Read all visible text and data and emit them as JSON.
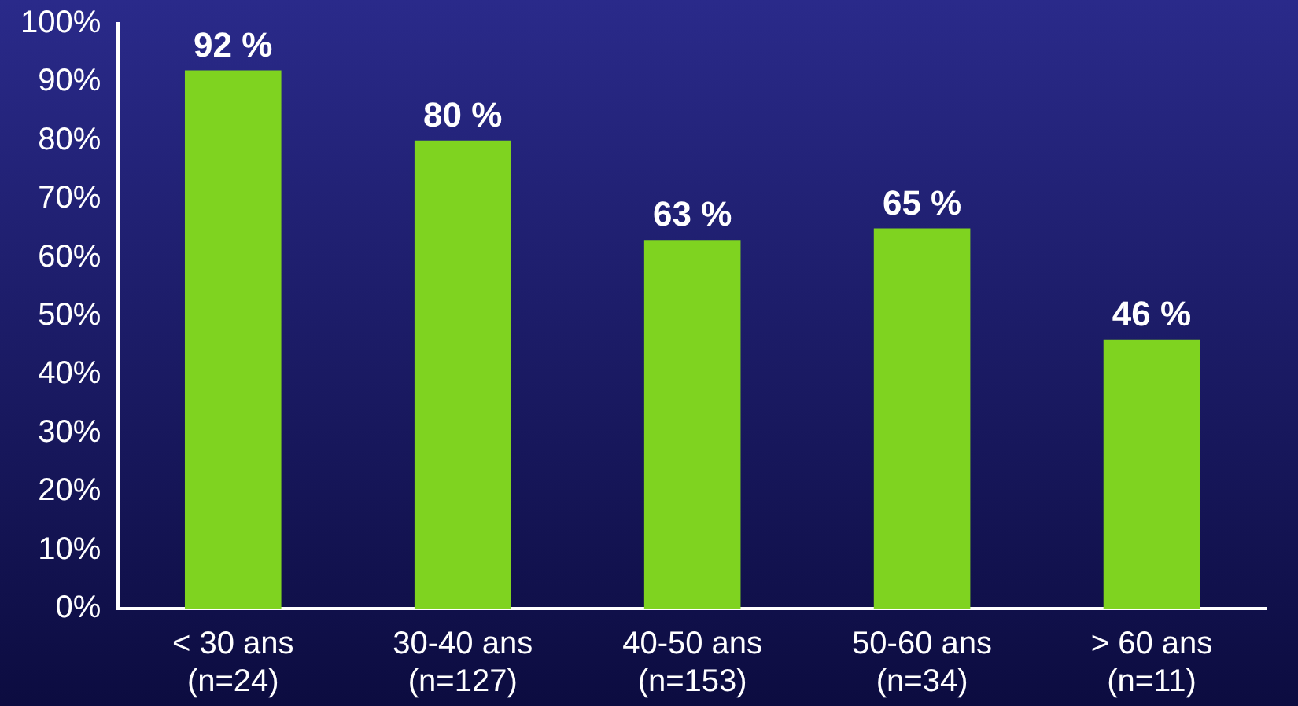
{
  "chart_data": {
    "type": "bar",
    "categories": [
      "< 30 ans\n(n=24)",
      "30-40 ans\n(n=127)",
      "40-50 ans\n(n=153)",
      "50-60 ans\n(n=34)",
      "> 60 ans\n(n=11)"
    ],
    "values": [
      92,
      80,
      63,
      65,
      46
    ],
    "value_labels": [
      "92 %",
      "80 %",
      "63 %",
      "65 %",
      "46 %"
    ],
    "color": "#7fd320",
    "ylim": [
      0,
      100
    ],
    "yticks": [
      {
        "value": 0,
        "label": "0%"
      },
      {
        "value": 10,
        "label": "10%"
      },
      {
        "value": 20,
        "label": "20%"
      },
      {
        "value": 30,
        "label": "30%"
      },
      {
        "value": 40,
        "label": "40%"
      },
      {
        "value": 50,
        "label": "50%"
      },
      {
        "value": 60,
        "label": "60%"
      },
      {
        "value": 70,
        "label": "70%"
      },
      {
        "value": 80,
        "label": "80%"
      },
      {
        "value": 90,
        "label": "90%"
      },
      {
        "value": 100,
        "label": "100%"
      }
    ],
    "grid": false,
    "legend": false
  }
}
